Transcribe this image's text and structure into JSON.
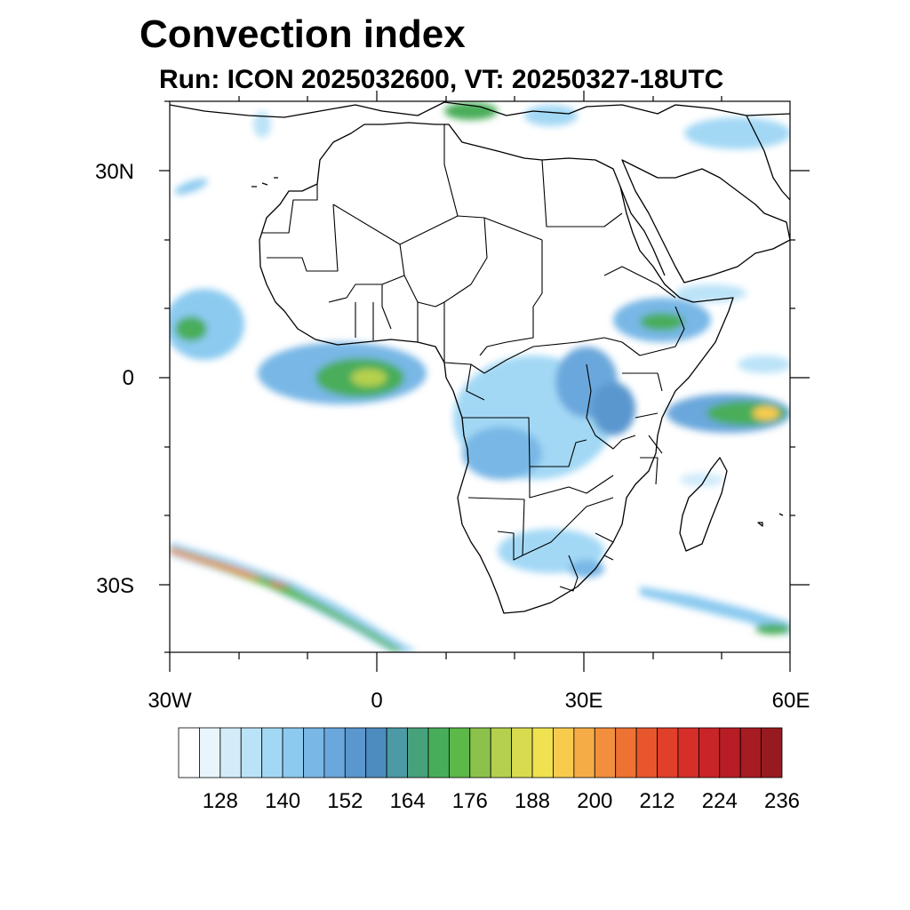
{
  "title": "Convection index",
  "subtitle": "Run: ICON 2025032600,  VT: 20250327-18UTC",
  "map": {
    "region": "Africa",
    "projection": "lat-lon",
    "lon_range": [
      -30,
      60
    ],
    "lat_range": [
      -40,
      40
    ],
    "lat_labels": [
      "30N",
      "0",
      "30S"
    ],
    "lon_labels": [
      "30W",
      "0",
      "30E",
      "60E"
    ]
  },
  "colorbar": {
    "colors": [
      "#ffffff",
      "#e8f5fc",
      "#d2ecfa",
      "#bbe3f8",
      "#a3d8f5",
      "#8ccaf0",
      "#78b7e6",
      "#6aa7dc",
      "#5a97cf",
      "#4d8cbf",
      "#4b9aa5",
      "#47a27c",
      "#48ad5a",
      "#5cb848",
      "#8cc24c",
      "#b5d04e",
      "#d8db4f",
      "#efe150",
      "#f8cb4f",
      "#f6ac46",
      "#f28f3d",
      "#ed7233",
      "#e7562d",
      "#e03f2a",
      "#d62f2a",
      "#c92428",
      "#b81d25",
      "#a71b22",
      "#961a1f"
    ],
    "labels": [
      "128",
      "140",
      "152",
      "164",
      "176",
      "188",
      "200",
      "212",
      "224",
      "236"
    ]
  }
}
